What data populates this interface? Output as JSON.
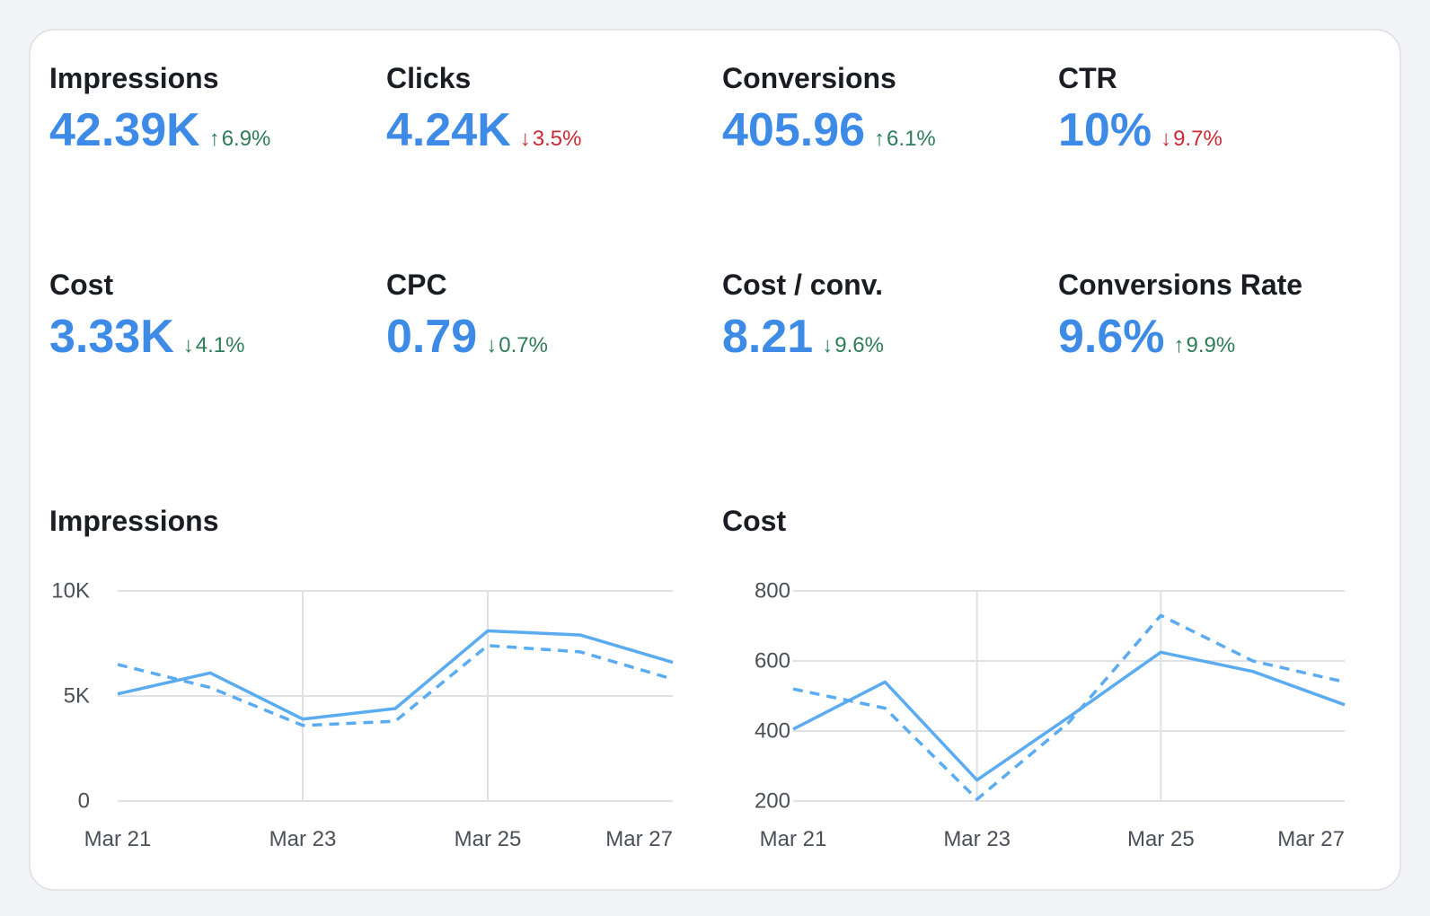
{
  "kpis": [
    {
      "label": "Impressions",
      "value": "42.39K",
      "delta": "6.9%",
      "direction": "up",
      "trend": "good"
    },
    {
      "label": "Clicks",
      "value": "4.24K",
      "delta": "3.5%",
      "direction": "down",
      "trend": "bad"
    },
    {
      "label": "Conversions",
      "value": "405.96",
      "delta": "6.1%",
      "direction": "up",
      "trend": "good"
    },
    {
      "label": "CTR",
      "value": "10%",
      "delta": "9.7%",
      "direction": "down",
      "trend": "bad"
    },
    {
      "label": "Cost",
      "value": "3.33K",
      "delta": "4.1%",
      "direction": "down",
      "trend": "good"
    },
    {
      "label": "CPC",
      "value": "0.79",
      "delta": "0.7%",
      "direction": "down",
      "trend": "good"
    },
    {
      "label": "Cost / conv.",
      "value": "8.21",
      "delta": "9.6%",
      "direction": "down",
      "trend": "good"
    },
    {
      "label": "Conversions Rate",
      "value": "9.6%",
      "delta": "9.9%",
      "direction": "up",
      "trend": "good"
    }
  ],
  "colors": {
    "accent": "#3d8be6",
    "line": "#5aabf0",
    "good": "#2e7d57",
    "bad": "#c92a36",
    "grid": "#dfe1e5"
  },
  "chart_data": [
    {
      "type": "line",
      "title": "Impressions",
      "x": [
        "Mar 21",
        "Mar 22",
        "Mar 23",
        "Mar 24",
        "Mar 25",
        "Mar 26",
        "Mar 27"
      ],
      "x_tick_labels": [
        "Mar 21",
        "Mar 23",
        "Mar 25",
        "Mar 27"
      ],
      "y_tick_labels": [
        "0",
        "5K",
        "10K"
      ],
      "y_ticks": [
        0,
        5000,
        10000
      ],
      "ylim": [
        0,
        10000
      ],
      "series": [
        {
          "style": "solid",
          "values": [
            5100,
            6100,
            3900,
            4400,
            8100,
            7900,
            6600
          ]
        },
        {
          "style": "dashed",
          "values": [
            6500,
            5400,
            3600,
            3800,
            7400,
            7100,
            5800
          ]
        }
      ]
    },
    {
      "type": "line",
      "title": "Cost",
      "x": [
        "Mar 21",
        "Mar 22",
        "Mar 23",
        "Mar 24",
        "Mar 25",
        "Mar 26",
        "Mar 27"
      ],
      "x_tick_labels": [
        "Mar 21",
        "Mar 23",
        "Mar 25",
        "Mar 27"
      ],
      "y_tick_labels": [
        "200",
        "400",
        "600",
        "800"
      ],
      "y_ticks": [
        200,
        400,
        600,
        800
      ],
      "ylim": [
        200,
        800
      ],
      "series": [
        {
          "style": "solid",
          "values": [
            405,
            540,
            260,
            440,
            625,
            570,
            475
          ]
        },
        {
          "style": "dashed",
          "values": [
            520,
            465,
            205,
            425,
            730,
            600,
            540
          ]
        }
      ]
    }
  ]
}
